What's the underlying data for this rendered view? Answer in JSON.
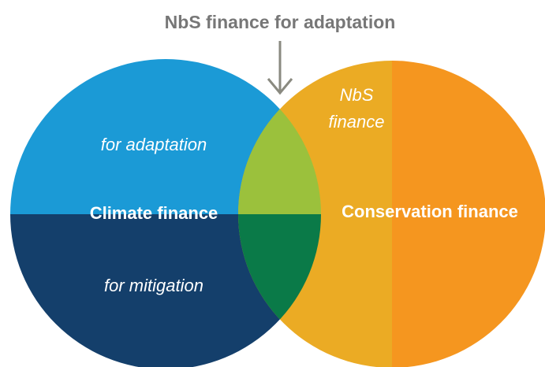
{
  "title": "NbS finance for adaptation",
  "climate": {
    "label": "Climate finance",
    "adaptation": "for adaptation",
    "mitigation": "for mitigation"
  },
  "conservation": {
    "label": "Conservation finance",
    "nbs": [
      "NbS",
      "finance"
    ]
  }
}
